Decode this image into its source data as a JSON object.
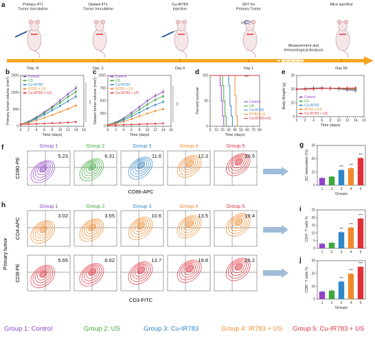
{
  "timeline": {
    "panel_label": "a",
    "events": [
      {
        "title": "Primary 4T1\nTumor Inoculation",
        "day": "Day -8"
      },
      {
        "title": "Distant 4T1\nTumor Inoculation",
        "day": "Day -1"
      },
      {
        "title": "Cu-IR783\nInjection",
        "day": "Day 0"
      },
      {
        "title": "SDT for\nPrimary Tumor",
        "day": "Day 1"
      },
      {
        "title": "Mice sacrifice",
        "day": "Day 50"
      }
    ],
    "us_label": "US",
    "measurement_text": "Measurement and\nImmunological Analysis"
  },
  "colors": {
    "control": "#8e44c9",
    "us": "#3aa83a",
    "cu_ir783": "#2f86c8",
    "ir783_us": "#f0892a",
    "cu_ir783_us": "#e0303a"
  },
  "chart_data": [
    {
      "panel": "b",
      "type": "line",
      "xlabel": "Time (days)",
      "ylabel": "Primary tumor volume (mm³)",
      "xlim": [
        0,
        16
      ],
      "ylim": [
        0,
        1500
      ],
      "xticks": [
        0,
        2,
        4,
        6,
        8,
        10,
        12,
        14,
        16
      ],
      "yticks": [
        0,
        500,
        1000,
        1500
      ],
      "significance": "***",
      "x": [
        0,
        2,
        4,
        6,
        8,
        10,
        12,
        14
      ],
      "series": [
        {
          "name": "Control",
          "values": [
            60,
            140,
            270,
            420,
            580,
            760,
            950,
            1130
          ]
        },
        {
          "name": "US",
          "values": [
            60,
            130,
            250,
            390,
            540,
            700,
            870,
            1020
          ]
        },
        {
          "name": "Cu-IR783",
          "values": [
            60,
            120,
            220,
            340,
            470,
            600,
            740,
            880
          ]
        },
        {
          "name": "IR783 + US",
          "values": [
            60,
            100,
            170,
            250,
            330,
            420,
            510,
            610
          ]
        },
        {
          "name": "Cu-IR783 + US",
          "values": [
            50,
            60,
            70,
            80,
            90,
            100,
            110,
            130
          ]
        }
      ]
    },
    {
      "panel": "c",
      "type": "line",
      "xlabel": "Time (days)",
      "ylabel": "Distant tumor volume (mm³)",
      "xlim": [
        0,
        16
      ],
      "ylim": [
        0,
        1000
      ],
      "xticks": [
        0,
        2,
        4,
        6,
        8,
        10,
        12,
        14,
        16
      ],
      "yticks": [
        0,
        250,
        500,
        750,
        1000
      ],
      "significance": "***",
      "x": [
        0,
        2,
        4,
        6,
        8,
        10,
        12,
        14
      ],
      "series": [
        {
          "name": "Control",
          "values": [
            30,
            80,
            160,
            270,
            380,
            500,
            600,
            680
          ]
        },
        {
          "name": "US",
          "values": [
            30,
            70,
            140,
            230,
            330,
            430,
            520,
            590
          ]
        },
        {
          "name": "Cu-IR783",
          "values": [
            30,
            60,
            120,
            190,
            270,
            350,
            420,
            480
          ]
        },
        {
          "name": "IR783 + US",
          "values": [
            30,
            50,
            90,
            140,
            200,
            250,
            300,
            340
          ]
        },
        {
          "name": "Cu-IR783 + US",
          "values": [
            20,
            25,
            30,
            35,
            40,
            45,
            50,
            55
          ]
        }
      ]
    },
    {
      "panel": "d",
      "type": "line",
      "xlabel": "Time (days)",
      "ylabel": "Percent survival",
      "xlim": [
        0,
        80
      ],
      "ylim": [
        0,
        100
      ],
      "xticks": [
        0,
        10,
        20,
        30,
        40,
        50,
        60,
        70,
        80
      ],
      "yticks": [
        0,
        50,
        100
      ],
      "significance": "***",
      "series": [
        {
          "name": "Control",
          "x": [
            0,
            16,
            16,
            18,
            18,
            20,
            20,
            22,
            22
          ],
          "values": [
            100,
            100,
            80,
            80,
            50,
            50,
            20,
            20,
            0
          ]
        },
        {
          "name": "US",
          "x": [
            0,
            20,
            20,
            22,
            22,
            24,
            24,
            26,
            26
          ],
          "values": [
            100,
            100,
            80,
            80,
            50,
            50,
            20,
            20,
            0
          ]
        },
        {
          "name": "Cu-IR783",
          "x": [
            0,
            30,
            30,
            32,
            32,
            34,
            34,
            36,
            36
          ],
          "values": [
            100,
            100,
            80,
            80,
            40,
            40,
            20,
            20,
            0
          ]
        },
        {
          "name": "IR783+US",
          "x": [
            0,
            40,
            40,
            42,
            42,
            44,
            44
          ],
          "values": [
            100,
            100,
            60,
            60,
            20,
            20,
            0
          ]
        },
        {
          "name": "Cu-IR783+US",
          "x": [
            0,
            80
          ],
          "values": [
            100,
            100
          ]
        }
      ]
    },
    {
      "panel": "e",
      "type": "line",
      "xlabel": "Time (days)",
      "ylabel": "Body Weight (g)",
      "xlim": [
        0,
        16
      ],
      "ylim": [
        0,
        30
      ],
      "xticks": [
        0,
        2,
        4,
        6,
        8,
        10,
        12,
        14,
        16
      ],
      "yticks": [
        0,
        10,
        20,
        30
      ],
      "x": [
        0,
        2,
        4,
        6,
        8,
        10,
        12,
        14
      ],
      "series": [
        {
          "name": "Control",
          "values": [
            20,
            20.5,
            20.8,
            21,
            20.6,
            20.2,
            19.5,
            18.8
          ]
        },
        {
          "name": "US",
          "values": [
            20,
            20.3,
            20.6,
            20.8,
            20.5,
            20.3,
            20,
            19.6
          ]
        },
        {
          "name": "Cu-IR783",
          "values": [
            20,
            20.2,
            20.5,
            20.7,
            20.6,
            20.4,
            20.3,
            20.1
          ]
        },
        {
          "name": "IR783 + US",
          "values": [
            20,
            20.1,
            20.4,
            20.6,
            20.7,
            20.6,
            20.5,
            20.4
          ]
        },
        {
          "name": "Cu-IR783 + US",
          "values": [
            20,
            20,
            20.2,
            20.5,
            20.6,
            20.7,
            20.8,
            20.9
          ]
        }
      ]
    },
    {
      "panel": "g",
      "type": "bar",
      "xlabel": "Groups",
      "ylabel": "DC maturation (%)",
      "categories": [
        "1",
        "2",
        "3",
        "4",
        "5"
      ],
      "ylim": [
        0,
        30
      ],
      "yticks": [
        0,
        10,
        20,
        30
      ],
      "values": [
        5.5,
        6.5,
        11.5,
        12.8,
        20.5
      ],
      "significance": [
        "",
        "",
        "***",
        "***",
        "***"
      ]
    },
    {
      "panel": "i",
      "type": "bar",
      "xlabel": "",
      "ylabel": "CD4⁺ T cells %",
      "categories": [
        "1",
        "2",
        "3",
        "4",
        "5"
      ],
      "ylim": [
        0,
        25
      ],
      "yticks": [
        0,
        5,
        10,
        15,
        20,
        25
      ],
      "values": [
        3.0,
        3.6,
        10.5,
        13.5,
        19.4
      ],
      "significance": [
        "",
        "",
        "***",
        "***",
        "***"
      ]
    },
    {
      "panel": "j",
      "type": "bar",
      "xlabel": "Groups",
      "ylabel": "CD8⁺ T cells %",
      "categories": [
        "1",
        "2",
        "3",
        "4",
        "5"
      ],
      "ylim": [
        0,
        30
      ],
      "yticks": [
        0,
        10,
        20,
        30
      ],
      "values": [
        5.9,
        6.6,
        13.7,
        19.8,
        25.2
      ],
      "significance": [
        "",
        "",
        "***",
        "***",
        "***"
      ]
    }
  ],
  "flow": {
    "f": {
      "panel_label": "f",
      "ylabel": "CD80-PE",
      "xlabel": "CD86-APC",
      "groups": [
        "Group 1",
        "Group 2",
        "Group 3",
        "Group 4",
        "Group 5"
      ],
      "values": [
        "5.23",
        "6.31",
        "11.6",
        "12.3",
        "20.5"
      ]
    },
    "h": {
      "panel_label": "h",
      "side_label": "Primary tumor",
      "xlabel": "CD3-FITC",
      "groups": [
        "Group 1",
        "Group 2",
        "Group 3",
        "Group 4",
        "Group 5"
      ],
      "row1": {
        "ylabel": "CD4-APC",
        "values": [
          "3.02",
          "3.65",
          "10.6",
          "13.5",
          "19.4"
        ]
      },
      "row2": {
        "ylabel": "CD8-PE",
        "values": [
          "5.65",
          "6.62",
          "13.7",
          "19.8",
          "25.2"
        ]
      }
    }
  },
  "bottom_legend": [
    "Group 1: Control",
    "Group 2: US",
    "Group 3: Cu-IR783",
    "Group 4: IR783 + US",
    "Group 5: Cu-IR783 + US"
  ]
}
